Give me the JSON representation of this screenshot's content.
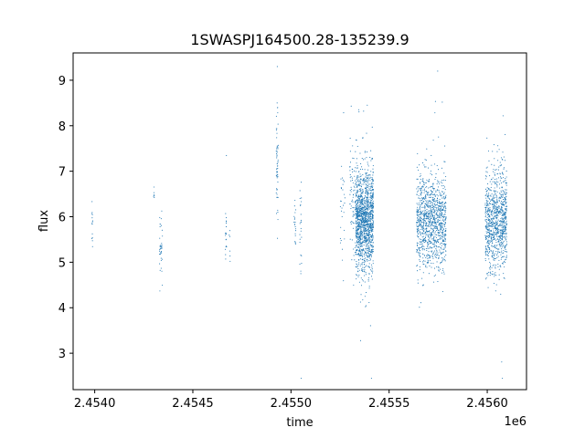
{
  "chart_data": {
    "type": "scatter",
    "title": "1SWASPJ164500.28-135239.9",
    "xlabel": "time",
    "ylabel": "flux",
    "x_offset_label": "1e6",
    "xlim": [
      2453890,
      2456200
    ],
    "ylim": [
      2.2,
      9.6
    ],
    "grid": false,
    "x_ticks": [
      2454000,
      2454500,
      2455000,
      2455500,
      2456000
    ],
    "x_tick_labels": [
      "2.4540",
      "2.4545",
      "2.4550",
      "2.4555",
      "2.4560"
    ],
    "y_ticks": [
      3,
      4,
      5,
      6,
      7,
      8,
      9
    ],
    "y_tick_labels": [
      "3",
      "4",
      "5",
      "6",
      "7",
      "8",
      "9"
    ],
    "series_color": "#1f77b4",
    "observing_seasons": [
      {
        "start": 2453985,
        "end": 2453990,
        "flux_center": 5.9,
        "flux_sd": 0.35,
        "n": 14
      },
      {
        "start": 2454300,
        "end": 2454305,
        "flux_center": 6.5,
        "flux_sd": 0.05,
        "n": 6
      },
      {
        "start": 2454330,
        "end": 2454345,
        "flux_center": 5.4,
        "flux_sd": 0.4,
        "n": 40
      },
      {
        "start": 2454665,
        "end": 2454672,
        "flux_center": 5.6,
        "flux_sd": 0.3,
        "n": 20
      },
      {
        "start": 2454685,
        "end": 2454690,
        "flux_center": 5.4,
        "flux_sd": 0.3,
        "n": 6
      },
      {
        "start": 2454925,
        "end": 2454935,
        "flux_center": 7.1,
        "flux_sd": 0.55,
        "n": 60
      },
      {
        "start": 2455015,
        "end": 2455025,
        "flux_center": 5.7,
        "flux_sd": 0.35,
        "n": 20
      },
      {
        "start": 2455045,
        "end": 2455055,
        "flux_center": 5.9,
        "flux_sd": 0.45,
        "n": 25
      },
      {
        "start": 2455250,
        "end": 2455275,
        "flux_center": 6.0,
        "flux_sd": 0.6,
        "n": 30
      },
      {
        "start": 2455300,
        "end": 2455330,
        "flux_center": 6.5,
        "flux_sd": 0.6,
        "n": 80
      },
      {
        "start": 2455330,
        "end": 2455420,
        "flux_center": 5.9,
        "flux_sd": 0.55,
        "n": 1400
      },
      {
        "start": 2455640,
        "end": 2455790,
        "flux_center": 5.9,
        "flux_sd": 0.5,
        "n": 1100
      },
      {
        "start": 2455990,
        "end": 2456100,
        "flux_center": 5.9,
        "flux_sd": 0.55,
        "n": 950
      }
    ]
  }
}
